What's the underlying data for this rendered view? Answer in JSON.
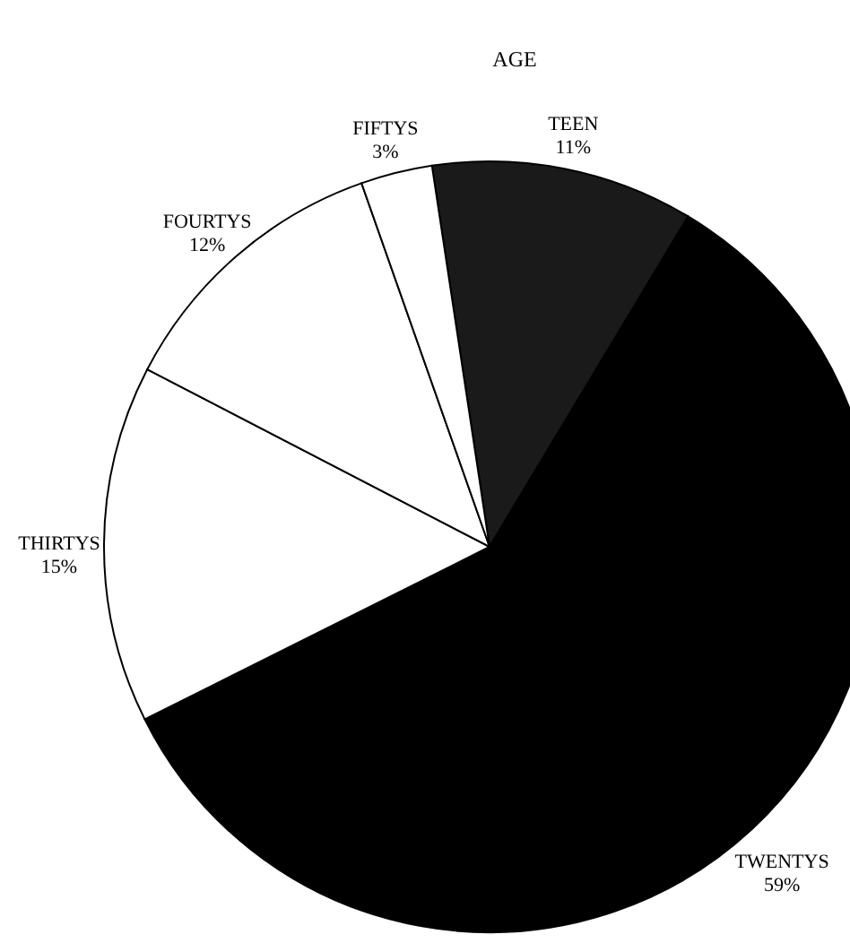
{
  "chart_data": {
    "type": "pie",
    "title": "AGE",
    "categories": [
      "TEEN",
      "TWENTYS",
      "THIRTYS",
      "FOURTYS",
      "FIFTYS"
    ],
    "values": [
      11,
      59,
      15,
      12,
      3
    ],
    "value_labels": [
      "11%",
      "59%",
      "15%",
      "12%",
      "3%"
    ],
    "colors": [
      "#1a1a1a",
      "#000000",
      "#ffffff",
      "#ffffff",
      "#ffffff"
    ],
    "legend": false
  }
}
